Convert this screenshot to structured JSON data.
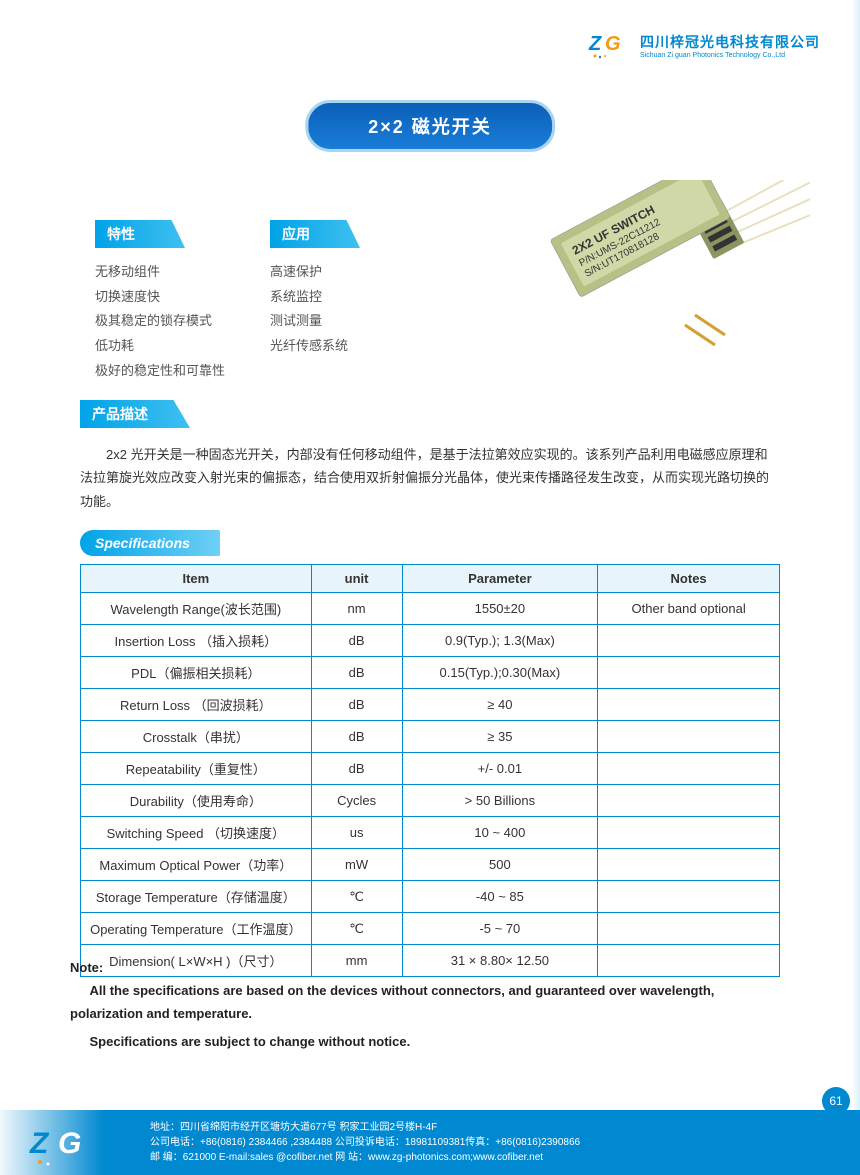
{
  "company": {
    "name_cn": "四川梓冠光电科技有限公司",
    "name_en": "Sichuan Zi guan Photonics Technology Co.,Ltd",
    "logo_text": "ZG"
  },
  "title": "2×2 磁光开关",
  "features": {
    "tag": "特性",
    "items": [
      "无移动组件",
      "切换速度快",
      "极其稳定的锁存模式",
      "低功耗",
      "极好的稳定性和可靠性"
    ]
  },
  "applications": {
    "tag": "应用",
    "items": [
      "高速保护",
      "系统监控",
      "测试测量",
      "光纤传感系统"
    ]
  },
  "description": {
    "tag": "产品描述",
    "text": "2x2 光开关是一种固态光开关，内部没有任何移动组件，是基于法拉第效应实现的。该系列产品利用电磁感应原理和法拉第旋光效应改变入射光束的偏振态，结合使用双折射偏振分光晶体，使光束传播路径发生改变，从而实现光路切换的功能。"
  },
  "device_label": {
    "line1": "2X2 UF SWITCH",
    "line2": "P/N:UMS-22C11212",
    "line3": "S/N:UT170818128"
  },
  "spec": {
    "tag": "Specifications",
    "columns": [
      "Item",
      "unit",
      "Parameter",
      "Notes"
    ],
    "rows": [
      [
        "Wavelength Range(波长范围)",
        "nm",
        "1550±20",
        "Other band optional"
      ],
      [
        "Insertion Loss （插入损耗）",
        "dB",
        "0.9(Typ.); 1.3(Max)",
        ""
      ],
      [
        "PDL（偏振相关损耗）",
        "dB",
        "0.15(Typ.);0.30(Max)",
        ""
      ],
      [
        "Return Loss （回波损耗）",
        "dB",
        "≥ 40",
        ""
      ],
      [
        "Crosstalk（串扰）",
        "dB",
        "≥ 35",
        ""
      ],
      [
        "Repeatability（重复性）",
        "dB",
        "+/- 0.01",
        ""
      ],
      [
        "Durability（使用寿命）",
        "Cycles",
        "> 50 Billions",
        ""
      ],
      [
        "Switching Speed （切换速度）",
        "us",
        "10 ~ 400",
        ""
      ],
      [
        "Maximum Optical Power（功率）",
        "mW",
        "500",
        ""
      ],
      [
        "Storage Temperature（存储温度）",
        "℃",
        "-40 ~ 85",
        ""
      ],
      [
        "Operating Temperature（工作温度）",
        "℃",
        "-5 ~ 70",
        ""
      ],
      [
        "Dimension( L×W×H )（尺寸）",
        "mm",
        "31 × 8.80× 12.50",
        ""
      ]
    ]
  },
  "notes": {
    "title": "Note:",
    "line1": "All the specifications are based on the devices without connectors, and guaranteed over wavelength, polarization and temperature.",
    "line2": "Specifications are subject to change without notice."
  },
  "footer": {
    "address": "地址：四川省绵阳市经开区塘坊大道677号 积家工业园2号楼H-4F",
    "tel": "公司电话：+86(0816) 2384466 ,2384488   公司投诉电话：18981109381传真：+86(0816)2390866",
    "email": "邮 编：621000  E-mail:sales @cofiber.net   网 站：www.zg-photonics.com;www.cofiber.net"
  },
  "page_number": "61",
  "colors": {
    "primary": "#0089d0",
    "tag_gradient_start": "#00a3e8",
    "tag_gradient_end": "#3fc0f0",
    "table_border": "#0089d0",
    "table_header_bg": "#e8f4fb"
  }
}
